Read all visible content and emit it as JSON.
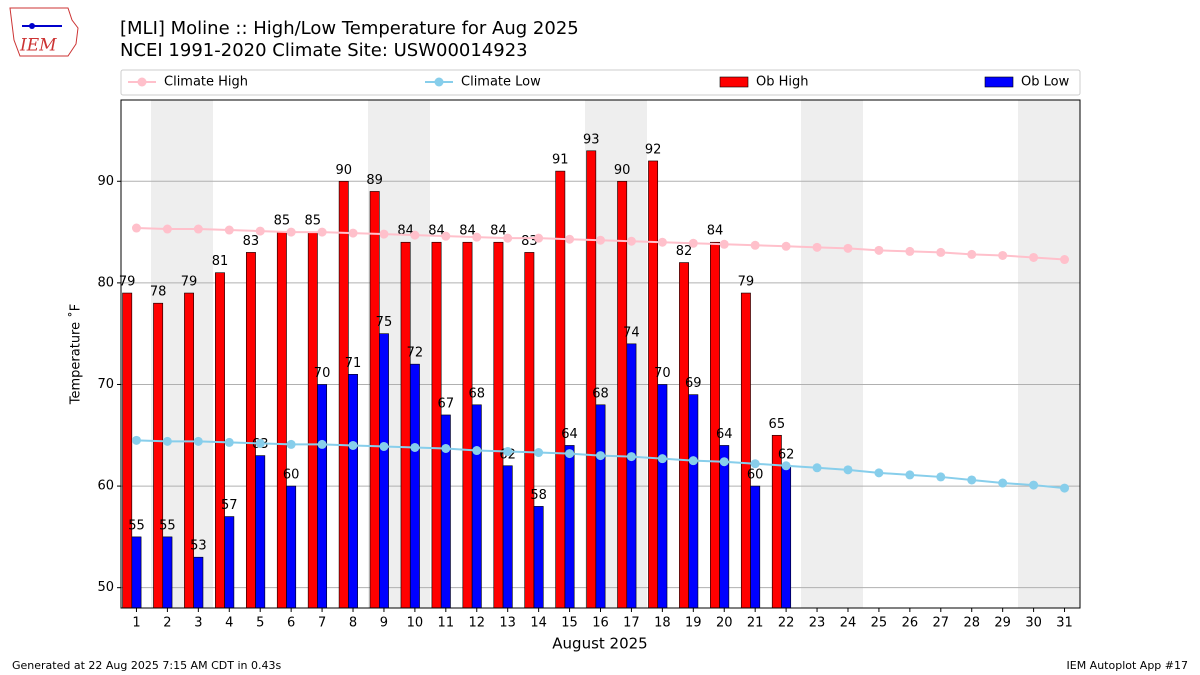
{
  "chart_data": {
    "type": "bar",
    "title": "[MLI] Moline :: High/Low Temperature for Aug 2025",
    "subtitle": "NCEI 1991-2020 Climate Site: USW00014923",
    "logo_text": "IEM",
    "xlabel": "August 2025",
    "ylabel": "Temperature ˚F",
    "footer_left": "Generated at 22 Aug 2025 7:15 AM CDT in 0.43s",
    "footer_right": "IEM Autoplot App #17",
    "x": [
      1,
      2,
      3,
      4,
      5,
      6,
      7,
      8,
      9,
      10,
      11,
      12,
      13,
      14,
      15,
      16,
      17,
      18,
      19,
      20,
      21,
      22,
      23,
      24,
      25,
      26,
      27,
      28,
      29,
      30,
      31
    ],
    "xlim": [
      0.5,
      31.5
    ],
    "xticks": [
      1,
      2,
      3,
      4,
      5,
      6,
      7,
      8,
      9,
      10,
      11,
      12,
      13,
      14,
      15,
      16,
      17,
      18,
      19,
      20,
      21,
      22,
      23,
      24,
      25,
      26,
      27,
      28,
      29,
      30,
      31
    ],
    "ylim": [
      48,
      98
    ],
    "yticks": [
      50,
      60,
      70,
      80,
      90
    ],
    "grid": true,
    "legend": "top",
    "series": [
      {
        "name": "Climate High",
        "type": "line",
        "color": "#ffc0cb",
        "values": [
          85.4,
          85.3,
          85.3,
          85.2,
          85.1,
          85.0,
          85.0,
          84.9,
          84.8,
          84.7,
          84.6,
          84.5,
          84.4,
          84.4,
          84.3,
          84.2,
          84.1,
          84.0,
          83.9,
          83.8,
          83.7,
          83.6,
          83.5,
          83.4,
          83.2,
          83.1,
          83.0,
          82.8,
          82.7,
          82.5,
          82.3
        ]
      },
      {
        "name": "Climate Low",
        "type": "line",
        "color": "#87ceeb",
        "values": [
          64.5,
          64.4,
          64.4,
          64.3,
          64.2,
          64.1,
          64.1,
          64.0,
          63.9,
          63.8,
          63.7,
          63.5,
          63.4,
          63.3,
          63.2,
          63.0,
          62.9,
          62.7,
          62.5,
          62.4,
          62.2,
          62.0,
          61.8,
          61.6,
          61.3,
          61.1,
          60.9,
          60.6,
          60.3,
          60.1,
          59.8
        ]
      },
      {
        "name": "Ob High",
        "type": "bar",
        "color": "#ff0000",
        "values": [
          79,
          78,
          79,
          81,
          83,
          85,
          85,
          90,
          89,
          84,
          84,
          84,
          84,
          83,
          91,
          93,
          90,
          92,
          82,
          84,
          79,
          65,
          null,
          null,
          null,
          null,
          null,
          null,
          null,
          null,
          null
        ]
      },
      {
        "name": "Ob Low",
        "type": "bar",
        "color": "#0000ff",
        "values": [
          55,
          55,
          53,
          57,
          63,
          60,
          70,
          71,
          75,
          72,
          67,
          68,
          62,
          58,
          64,
          68,
          74,
          70,
          69,
          64,
          60,
          62,
          null,
          null,
          null,
          null,
          null,
          null,
          null,
          null,
          null
        ]
      }
    ]
  }
}
